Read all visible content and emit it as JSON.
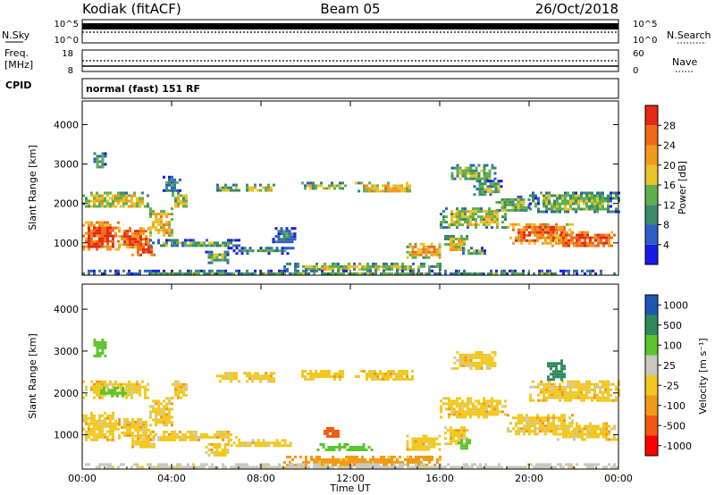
{
  "header": {
    "station": "Kodiak (fitACF)",
    "beam": "Beam 05",
    "date": "26/Oct/2018"
  },
  "top_panels": {
    "nsky_label": "N.Sky",
    "nsky_ticks": [
      "10^5",
      "10^0"
    ],
    "nsearch_label": "N.Search",
    "nsearch_ticks": [
      "10^5",
      "10^0"
    ],
    "freq_label_1": "Freq.",
    "freq_label_2": "[MHz]",
    "freq_ticks": [
      "18",
      "8"
    ],
    "nave_label": "Nave",
    "nave_ticks": [
      "60",
      "0"
    ],
    "cpid_label": "CPID",
    "cpid_text": "normal (fast) 151 RF"
  },
  "colors": {
    "power": [
      "#1a1ae6",
      "#2e5fc4",
      "#3b8a6a",
      "#5fb04c",
      "#e8c32a",
      "#f09a1e",
      "#f06a16",
      "#e42a12"
    ],
    "velocity": [
      "#ff0000",
      "#f05a10",
      "#f29a18",
      "#f2c820",
      "#c8c8c0",
      "#5cc42c",
      "#2e8a5a",
      "#1f56b4"
    ]
  },
  "chart_data": [
    {
      "type": "heatmap",
      "name": "power",
      "xlabel": "",
      "ylabel": "Slant Range [km]",
      "x_ticks": [
        "00:00",
        "04:00",
        "08:00",
        "12:00",
        "16:00",
        "20:00",
        "00:00"
      ],
      "y_ticks": [
        "1000",
        "2000",
        "3000",
        "4000"
      ],
      "xlim": [
        0,
        24
      ],
      "ylim": [
        180,
        4600
      ],
      "colorbar_label": "Power [dB]",
      "colorbar_ticks": [
        "4",
        "8",
        "12",
        "16",
        "20",
        "24",
        "28"
      ],
      "zlim": [
        0,
        32
      ],
      "regions": [
        {
          "t": [
            0.0,
            1.6
          ],
          "r": [
            850,
            1550
          ],
          "z": 28
        },
        {
          "t": [
            1.6,
            3.0
          ],
          "r": [
            900,
            1400
          ],
          "z": 27
        },
        {
          "t": [
            2.2,
            3.2
          ],
          "r": [
            700,
            1000
          ],
          "z": 30
        },
        {
          "t": [
            3.0,
            4.0
          ],
          "r": [
            1200,
            1900
          ],
          "z": 20
        },
        {
          "t": [
            4.0,
            4.7
          ],
          "r": [
            1900,
            2300
          ],
          "z": 16
        },
        {
          "t": [
            0.0,
            3.0
          ],
          "r": [
            1900,
            2300
          ],
          "z": 18
        },
        {
          "t": [
            0.5,
            1.0
          ],
          "r": [
            2900,
            3300
          ],
          "z": 12
        },
        {
          "t": [
            3.6,
            4.4
          ],
          "r": [
            2300,
            2700
          ],
          "z": 10
        },
        {
          "t": [
            3.0,
            7.0
          ],
          "r": [
            900,
            1100
          ],
          "z": 12
        },
        {
          "t": [
            5.5,
            6.5
          ],
          "r": [
            500,
            800
          ],
          "z": 14
        },
        {
          "t": [
            6.5,
            9.5
          ],
          "r": [
            750,
            900
          ],
          "z": 10
        },
        {
          "t": [
            8.5,
            9.5
          ],
          "r": [
            1000,
            1400
          ],
          "z": 8
        },
        {
          "t": [
            6.0,
            7.0
          ],
          "r": [
            2300,
            2500
          ],
          "z": 14
        },
        {
          "t": [
            7.2,
            8.6
          ],
          "r": [
            2300,
            2500
          ],
          "z": 18
        },
        {
          "t": [
            9.8,
            11.8
          ],
          "r": [
            2350,
            2550
          ],
          "z": 16
        },
        {
          "t": [
            12.2,
            14.8
          ],
          "r": [
            2300,
            2550
          ],
          "z": 20
        },
        {
          "t": [
            14.5,
            16.0
          ],
          "r": [
            650,
            1000
          ],
          "z": 22
        },
        {
          "t": [
            16.2,
            17.2
          ],
          "r": [
            800,
            1200
          ],
          "z": 18
        },
        {
          "t": [
            17.0,
            18.0
          ],
          "r": [
            700,
            900
          ],
          "z": 12
        },
        {
          "t": [
            16.0,
            19.0
          ],
          "r": [
            1400,
            1900
          ],
          "z": 16
        },
        {
          "t": [
            16.5,
            18.5
          ],
          "r": [
            2600,
            3000
          ],
          "z": 14
        },
        {
          "t": [
            17.5,
            18.8
          ],
          "r": [
            2200,
            2600
          ],
          "z": 12
        },
        {
          "t": [
            18.5,
            20.0
          ],
          "r": [
            1800,
            2200
          ],
          "z": 14
        },
        {
          "t": [
            19.0,
            22.0
          ],
          "r": [
            1000,
            1500
          ],
          "z": 26
        },
        {
          "t": [
            21.0,
            24.0
          ],
          "r": [
            900,
            1300
          ],
          "z": 27
        },
        {
          "t": [
            20.0,
            24.0
          ],
          "r": [
            1800,
            2300
          ],
          "z": 14
        },
        {
          "t": [
            9.0,
            16.0
          ],
          "r": [
            300,
            500
          ],
          "z": 16
        },
        {
          "t": [
            0.0,
            24.0
          ],
          "r": [
            200,
            320
          ],
          "z": 12
        }
      ]
    },
    {
      "type": "heatmap",
      "name": "velocity",
      "xlabel": "Time UT",
      "ylabel": "Slant Range [km]",
      "x_ticks": [
        "00:00",
        "04:00",
        "08:00",
        "12:00",
        "16:00",
        "20:00",
        "00:00"
      ],
      "y_ticks": [
        "1000",
        "2000",
        "3000",
        "4000"
      ],
      "xlim": [
        0,
        24
      ],
      "ylim": [
        180,
        4600
      ],
      "colorbar_label": "Velocity [m s⁻¹]",
      "colorbar_ticks": [
        "-1000",
        "-500",
        "-100",
        "-25",
        "25",
        "100",
        "500",
        "1000"
      ],
      "regions": [
        {
          "t": [
            0.0,
            1.6
          ],
          "r": [
            850,
            1550
          ],
          "v": 0
        },
        {
          "t": [
            1.6,
            3.0
          ],
          "r": [
            900,
            1400
          ],
          "v": 0
        },
        {
          "t": [
            2.2,
            3.2
          ],
          "r": [
            700,
            1000
          ],
          "v": 0
        },
        {
          "t": [
            3.0,
            4.0
          ],
          "r": [
            1200,
            1900
          ],
          "v": 0
        },
        {
          "t": [
            4.0,
            4.7
          ],
          "r": [
            1900,
            2300
          ],
          "v": 0
        },
        {
          "t": [
            0.0,
            3.0
          ],
          "r": [
            1900,
            2300
          ],
          "v": 0
        },
        {
          "t": [
            0.5,
            1.0
          ],
          "r": [
            2900,
            3300
          ],
          "v": 200
        },
        {
          "t": [
            0.8,
            2.0
          ],
          "r": [
            1950,
            2150
          ],
          "v": 200
        },
        {
          "t": [
            3.0,
            7.0
          ],
          "r": [
            900,
            1100
          ],
          "v": 0
        },
        {
          "t": [
            5.5,
            6.5
          ],
          "r": [
            500,
            800
          ],
          "v": 0
        },
        {
          "t": [
            6.5,
            9.5
          ],
          "r": [
            750,
            900
          ],
          "v": 0
        },
        {
          "t": [
            6.0,
            7.0
          ],
          "r": [
            2300,
            2500
          ],
          "v": 0
        },
        {
          "t": [
            7.2,
            8.6
          ],
          "r": [
            2300,
            2500
          ],
          "v": 0
        },
        {
          "t": [
            9.8,
            11.8
          ],
          "r": [
            2350,
            2550
          ],
          "v": 0
        },
        {
          "t": [
            12.2,
            14.8
          ],
          "r": [
            2300,
            2550
          ],
          "v": 0
        },
        {
          "t": [
            14.5,
            16.0
          ],
          "r": [
            650,
            1000
          ],
          "v": 0
        },
        {
          "t": [
            16.2,
            17.2
          ],
          "r": [
            800,
            1200
          ],
          "v": 0
        },
        {
          "t": [
            16.8,
            17.3
          ],
          "r": [
            700,
            900
          ],
          "v": 200
        },
        {
          "t": [
            16.0,
            19.0
          ],
          "r": [
            1400,
            1900
          ],
          "v": 0
        },
        {
          "t": [
            16.5,
            18.5
          ],
          "r": [
            2600,
            3000
          ],
          "v": 0
        },
        {
          "t": [
            19.0,
            22.0
          ],
          "r": [
            1000,
            1500
          ],
          "v": 0
        },
        {
          "t": [
            21.0,
            24.0
          ],
          "r": [
            900,
            1300
          ],
          "v": 0
        },
        {
          "t": [
            20.0,
            24.0
          ],
          "r": [
            1800,
            2300
          ],
          "v": 0
        },
        {
          "t": [
            20.8,
            21.6
          ],
          "r": [
            2300,
            2800
          ],
          "v": 800
        },
        {
          "t": [
            10.5,
            13.0
          ],
          "r": [
            650,
            800
          ],
          "v": 200
        },
        {
          "t": [
            10.8,
            11.5
          ],
          "r": [
            950,
            1250
          ],
          "v": -400
        },
        {
          "t": [
            9.0,
            16.0
          ],
          "r": [
            300,
            500
          ],
          "v": -50
        },
        {
          "t": [
            0.0,
            24.0
          ],
          "r": [
            200,
            320
          ],
          "v": 50
        }
      ]
    }
  ]
}
